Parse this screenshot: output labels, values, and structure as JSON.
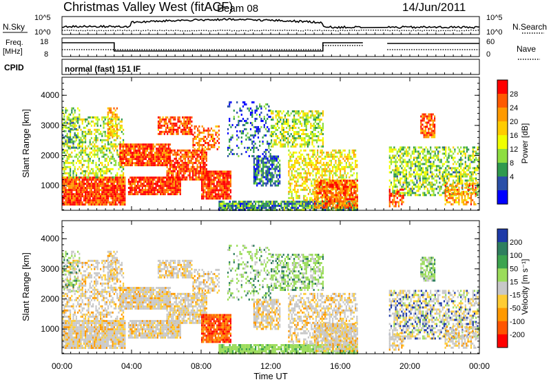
{
  "header": {
    "station": "Christmas Valley West (fitACF)",
    "beam": "Beam 08",
    "date": "14/Jun/2011"
  },
  "noise_panel": {
    "left_label": "N.Sky",
    "left_ticks": [
      "10^5",
      "10^0"
    ],
    "right_ticks": [
      "10^5",
      "10^0"
    ],
    "right_label": "N.Search"
  },
  "freq_panel": {
    "left_label_1": "Freq.",
    "left_label_2": "[MHz]",
    "left_ticks": [
      "18",
      "8"
    ],
    "right_ticks": [
      "60",
      "0"
    ],
    "right_label": "Nave"
  },
  "cpid_panel": {
    "label": "CPID",
    "program": "normal (fast) 151 IF"
  },
  "chart_data": [
    {
      "type": "heatmap",
      "name": "power",
      "ylabel": "Slant Range [km]",
      "yticks": [
        1000,
        2000,
        3000,
        4000
      ],
      "ylim": [
        180,
        4600
      ],
      "colorbar": {
        "label": "Power [dB]",
        "ticks": [
          "28",
          "24",
          "20",
          "16",
          "12",
          "8",
          "4"
        ],
        "colors": [
          "#ff0000",
          "#ff5a00",
          "#ff9a00",
          "#ffcc00",
          "#f0ff00",
          "#8ede40",
          "#2f9a4e",
          "#2a4fa8",
          "#0000ff"
        ]
      }
    },
    {
      "type": "heatmap",
      "name": "velocity",
      "ylabel": "Slant Range [km]",
      "yticks": [
        1000,
        2000,
        3000,
        4000
      ],
      "ylim": [
        180,
        4600
      ],
      "colorbar": {
        "label": "Velocity [m s⁻¹]",
        "ticks": [
          "200",
          "100",
          "50",
          "15",
          "-15",
          "-50",
          "-100",
          "-200"
        ],
        "colors": [
          "#1e3aa8",
          "#2f7f5f",
          "#3da44f",
          "#9bdc5a",
          "#c8c8c8",
          "#ffcc33",
          "#ff9900",
          "#ff5500",
          "#ff0000"
        ]
      }
    }
  ],
  "time_axis": {
    "label": "Time UT",
    "ticks": [
      "00:00",
      "04:00",
      "08:00",
      "12:00",
      "16:00",
      "20:00",
      "00:00"
    ]
  }
}
